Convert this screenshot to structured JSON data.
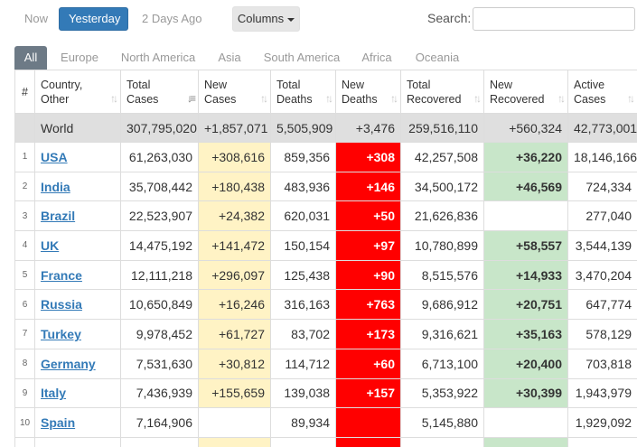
{
  "day_tabs": [
    {
      "label": "Now",
      "active": false
    },
    {
      "label": "Yesterday",
      "active": true
    },
    {
      "label": "2 Days Ago",
      "active": false
    }
  ],
  "columns_button": {
    "label": "Columns"
  },
  "search": {
    "label": "Search:",
    "value": ""
  },
  "region_tabs": [
    {
      "label": "All",
      "active": true
    },
    {
      "label": "Europe",
      "active": false
    },
    {
      "label": "North America",
      "active": false
    },
    {
      "label": "Asia",
      "active": false
    },
    {
      "label": "South America",
      "active": false
    },
    {
      "label": "Africa",
      "active": false
    },
    {
      "label": "Oceania",
      "active": false
    }
  ],
  "table": {
    "headers": [
      {
        "key": "idx",
        "label": "#"
      },
      {
        "key": "country",
        "label": "Country,\nOther"
      },
      {
        "key": "total_cases",
        "label": "Total\nCases",
        "sorted": true
      },
      {
        "key": "new_cases",
        "label": "New\nCases"
      },
      {
        "key": "total_deaths",
        "label": "Total\nDeaths"
      },
      {
        "key": "new_deaths",
        "label": "New\nDeaths"
      },
      {
        "key": "total_recovered",
        "label": "Total\nRecovered"
      },
      {
        "key": "new_recovered",
        "label": "New\nRecovered"
      },
      {
        "key": "active_cases",
        "label": "Active\nCases"
      }
    ],
    "world": {
      "idx": "",
      "country": "World",
      "total_cases": "307,795,020",
      "new_cases": "+1,857,071",
      "total_deaths": "5,505,909",
      "new_deaths": "+3,476",
      "total_recovered": "259,516,110",
      "new_recovered": "+560,324",
      "active_cases": "42,773,001"
    },
    "rows": [
      {
        "idx": "1",
        "country": "USA",
        "total_cases": "61,263,030",
        "new_cases": "+308,616",
        "total_deaths": "859,356",
        "new_deaths": "+308",
        "total_recovered": "42,257,508",
        "new_recovered": "+36,220",
        "active_cases": "18,146,166"
      },
      {
        "idx": "2",
        "country": "India",
        "total_cases": "35,708,442",
        "new_cases": "+180,438",
        "total_deaths": "483,936",
        "new_deaths": "+146",
        "total_recovered": "34,500,172",
        "new_recovered": "+46,569",
        "active_cases": "724,334"
      },
      {
        "idx": "3",
        "country": "Brazil",
        "total_cases": "22,523,907",
        "new_cases": "+24,382",
        "total_deaths": "620,031",
        "new_deaths": "+50",
        "total_recovered": "21,626,836",
        "new_recovered": "",
        "active_cases": "277,040"
      },
      {
        "idx": "4",
        "country": "UK",
        "total_cases": "14,475,192",
        "new_cases": "+141,472",
        "total_deaths": "150,154",
        "new_deaths": "+97",
        "total_recovered": "10,780,899",
        "new_recovered": "+58,557",
        "active_cases": "3,544,139"
      },
      {
        "idx": "5",
        "country": "France",
        "total_cases": "12,111,218",
        "new_cases": "+296,097",
        "total_deaths": "125,438",
        "new_deaths": "+90",
        "total_recovered": "8,515,576",
        "new_recovered": "+14,933",
        "active_cases": "3,470,204"
      },
      {
        "idx": "6",
        "country": "Russia",
        "total_cases": "10,650,849",
        "new_cases": "+16,246",
        "total_deaths": "316,163",
        "new_deaths": "+763",
        "total_recovered": "9,686,912",
        "new_recovered": "+20,751",
        "active_cases": "647,774"
      },
      {
        "idx": "7",
        "country": "Turkey",
        "total_cases": "9,978,452",
        "new_cases": "+61,727",
        "total_deaths": "83,702",
        "new_deaths": "+173",
        "total_recovered": "9,316,621",
        "new_recovered": "+35,163",
        "active_cases": "578,129"
      },
      {
        "idx": "8",
        "country": "Germany",
        "total_cases": "7,531,630",
        "new_cases": "+30,812",
        "total_deaths": "114,712",
        "new_deaths": "+60",
        "total_recovered": "6,713,100",
        "new_recovered": "+20,400",
        "active_cases": "703,818"
      },
      {
        "idx": "9",
        "country": "Italy",
        "total_cases": "7,436,939",
        "new_cases": "+155,659",
        "total_deaths": "139,038",
        "new_deaths": "+157",
        "total_recovered": "5,353,922",
        "new_recovered": "+30,399",
        "active_cases": "1,943,979"
      },
      {
        "idx": "10",
        "country": "Spain",
        "total_cases": "7,164,906",
        "new_cases": "",
        "total_deaths": "89,934",
        "new_deaths": "",
        "total_recovered": "5,145,880",
        "new_recovered": "",
        "active_cases": "1,929,092"
      },
      {
        "idx": "",
        "country": "",
        "total_cases": "",
        "new_cases": "",
        "total_deaths": "",
        "new_deaths": "",
        "total_recovered": "",
        "new_recovered": "",
        "active_cases": ""
      }
    ]
  },
  "colors": {
    "new_cases_bg": "#fff3c5",
    "new_deaths_bg": "#ff0000",
    "new_recovered_bg": "#c8e6c9",
    "accent": "#337ab7"
  }
}
